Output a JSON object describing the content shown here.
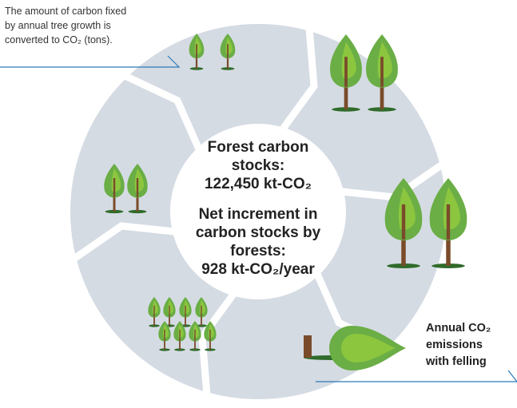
{
  "annotation_top": {
    "lines": [
      "The amount of carbon fixed",
      "by annual tree growth is",
      "converted to CO₂ (tons)."
    ]
  },
  "center": {
    "stocks_label": [
      "Forest carbon",
      "stocks:"
    ],
    "stocks_value": "122,450 kt-CO₂",
    "increment_label": [
      "Net increment in",
      "carbon stocks by",
      "forests:"
    ],
    "increment_value": "928 kt-CO₂/year"
  },
  "annotation_bottom": {
    "lines": [
      "Annual CO₂",
      "emissions",
      "with felling"
    ]
  }
}
